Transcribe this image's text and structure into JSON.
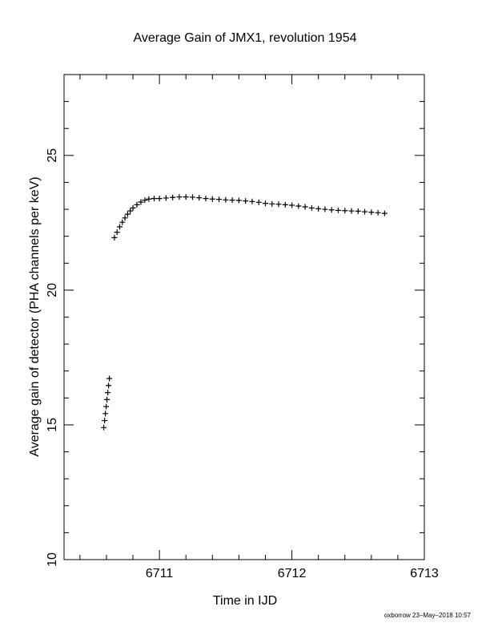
{
  "chart_data": {
    "type": "scatter",
    "title": "Average Gain of JMX1, revolution 1954",
    "xlabel": "Time in IJD",
    "ylabel": "Average gain of detector (PHA channels per keV)",
    "footer": "oxborrow 23–May–2018 10:57",
    "marker": "+",
    "color": "#000000",
    "xlim": [
      6710.28,
      6713
    ],
    "ylim": [
      10,
      28
    ],
    "xticks": [
      6711,
      6712,
      6713
    ],
    "yticks": [
      10,
      15,
      20,
      25
    ],
    "xminor_ticks": [
      6710.4,
      6710.6,
      6710.8,
      6711.2,
      6711.4,
      6711.6,
      6711.8,
      6712.2,
      6712.4,
      6712.6,
      6712.8
    ],
    "yminor_ticks": [
      11,
      12,
      13,
      14,
      16,
      17,
      18,
      19,
      21,
      22,
      23,
      24,
      26,
      27
    ],
    "x": [
      6710.58,
      6710.586,
      6710.592,
      6710.598,
      6710.604,
      6710.61,
      6710.616,
      6710.622,
      6710.66,
      6710.68,
      6710.7,
      6710.72,
      6710.74,
      6710.76,
      6710.78,
      6710.8,
      6710.83,
      6710.86,
      6710.89,
      6710.92,
      6710.96,
      6711.0,
      6711.05,
      6711.1,
      6711.15,
      6711.2,
      6711.25,
      6711.3,
      6711.35,
      6711.4,
      6711.45,
      6711.5,
      6711.55,
      6711.6,
      6711.65,
      6711.7,
      6711.75,
      6711.8,
      6711.85,
      6711.9,
      6711.95,
      6712.0,
      6712.05,
      6712.1,
      6712.15,
      6712.2,
      6712.25,
      6712.3,
      6712.35,
      6712.4,
      6712.45,
      6712.5,
      6712.55,
      6712.6,
      6712.65,
      6712.7
    ],
    "values": [
      14.9,
      15.16,
      15.42,
      15.68,
      15.94,
      16.2,
      16.46,
      16.72,
      21.95,
      22.15,
      22.35,
      22.52,
      22.68,
      22.82,
      22.94,
      23.05,
      23.17,
      23.27,
      23.34,
      23.38,
      23.4,
      23.4,
      23.42,
      23.44,
      23.46,
      23.46,
      23.45,
      23.43,
      23.4,
      23.38,
      23.37,
      23.35,
      23.34,
      23.33,
      23.31,
      23.29,
      23.26,
      23.22,
      23.2,
      23.19,
      23.17,
      23.15,
      23.12,
      23.09,
      23.05,
      23.02,
      23.0,
      22.98,
      22.96,
      22.95,
      22.94,
      22.93,
      22.91,
      22.89,
      22.87,
      22.85
    ]
  }
}
